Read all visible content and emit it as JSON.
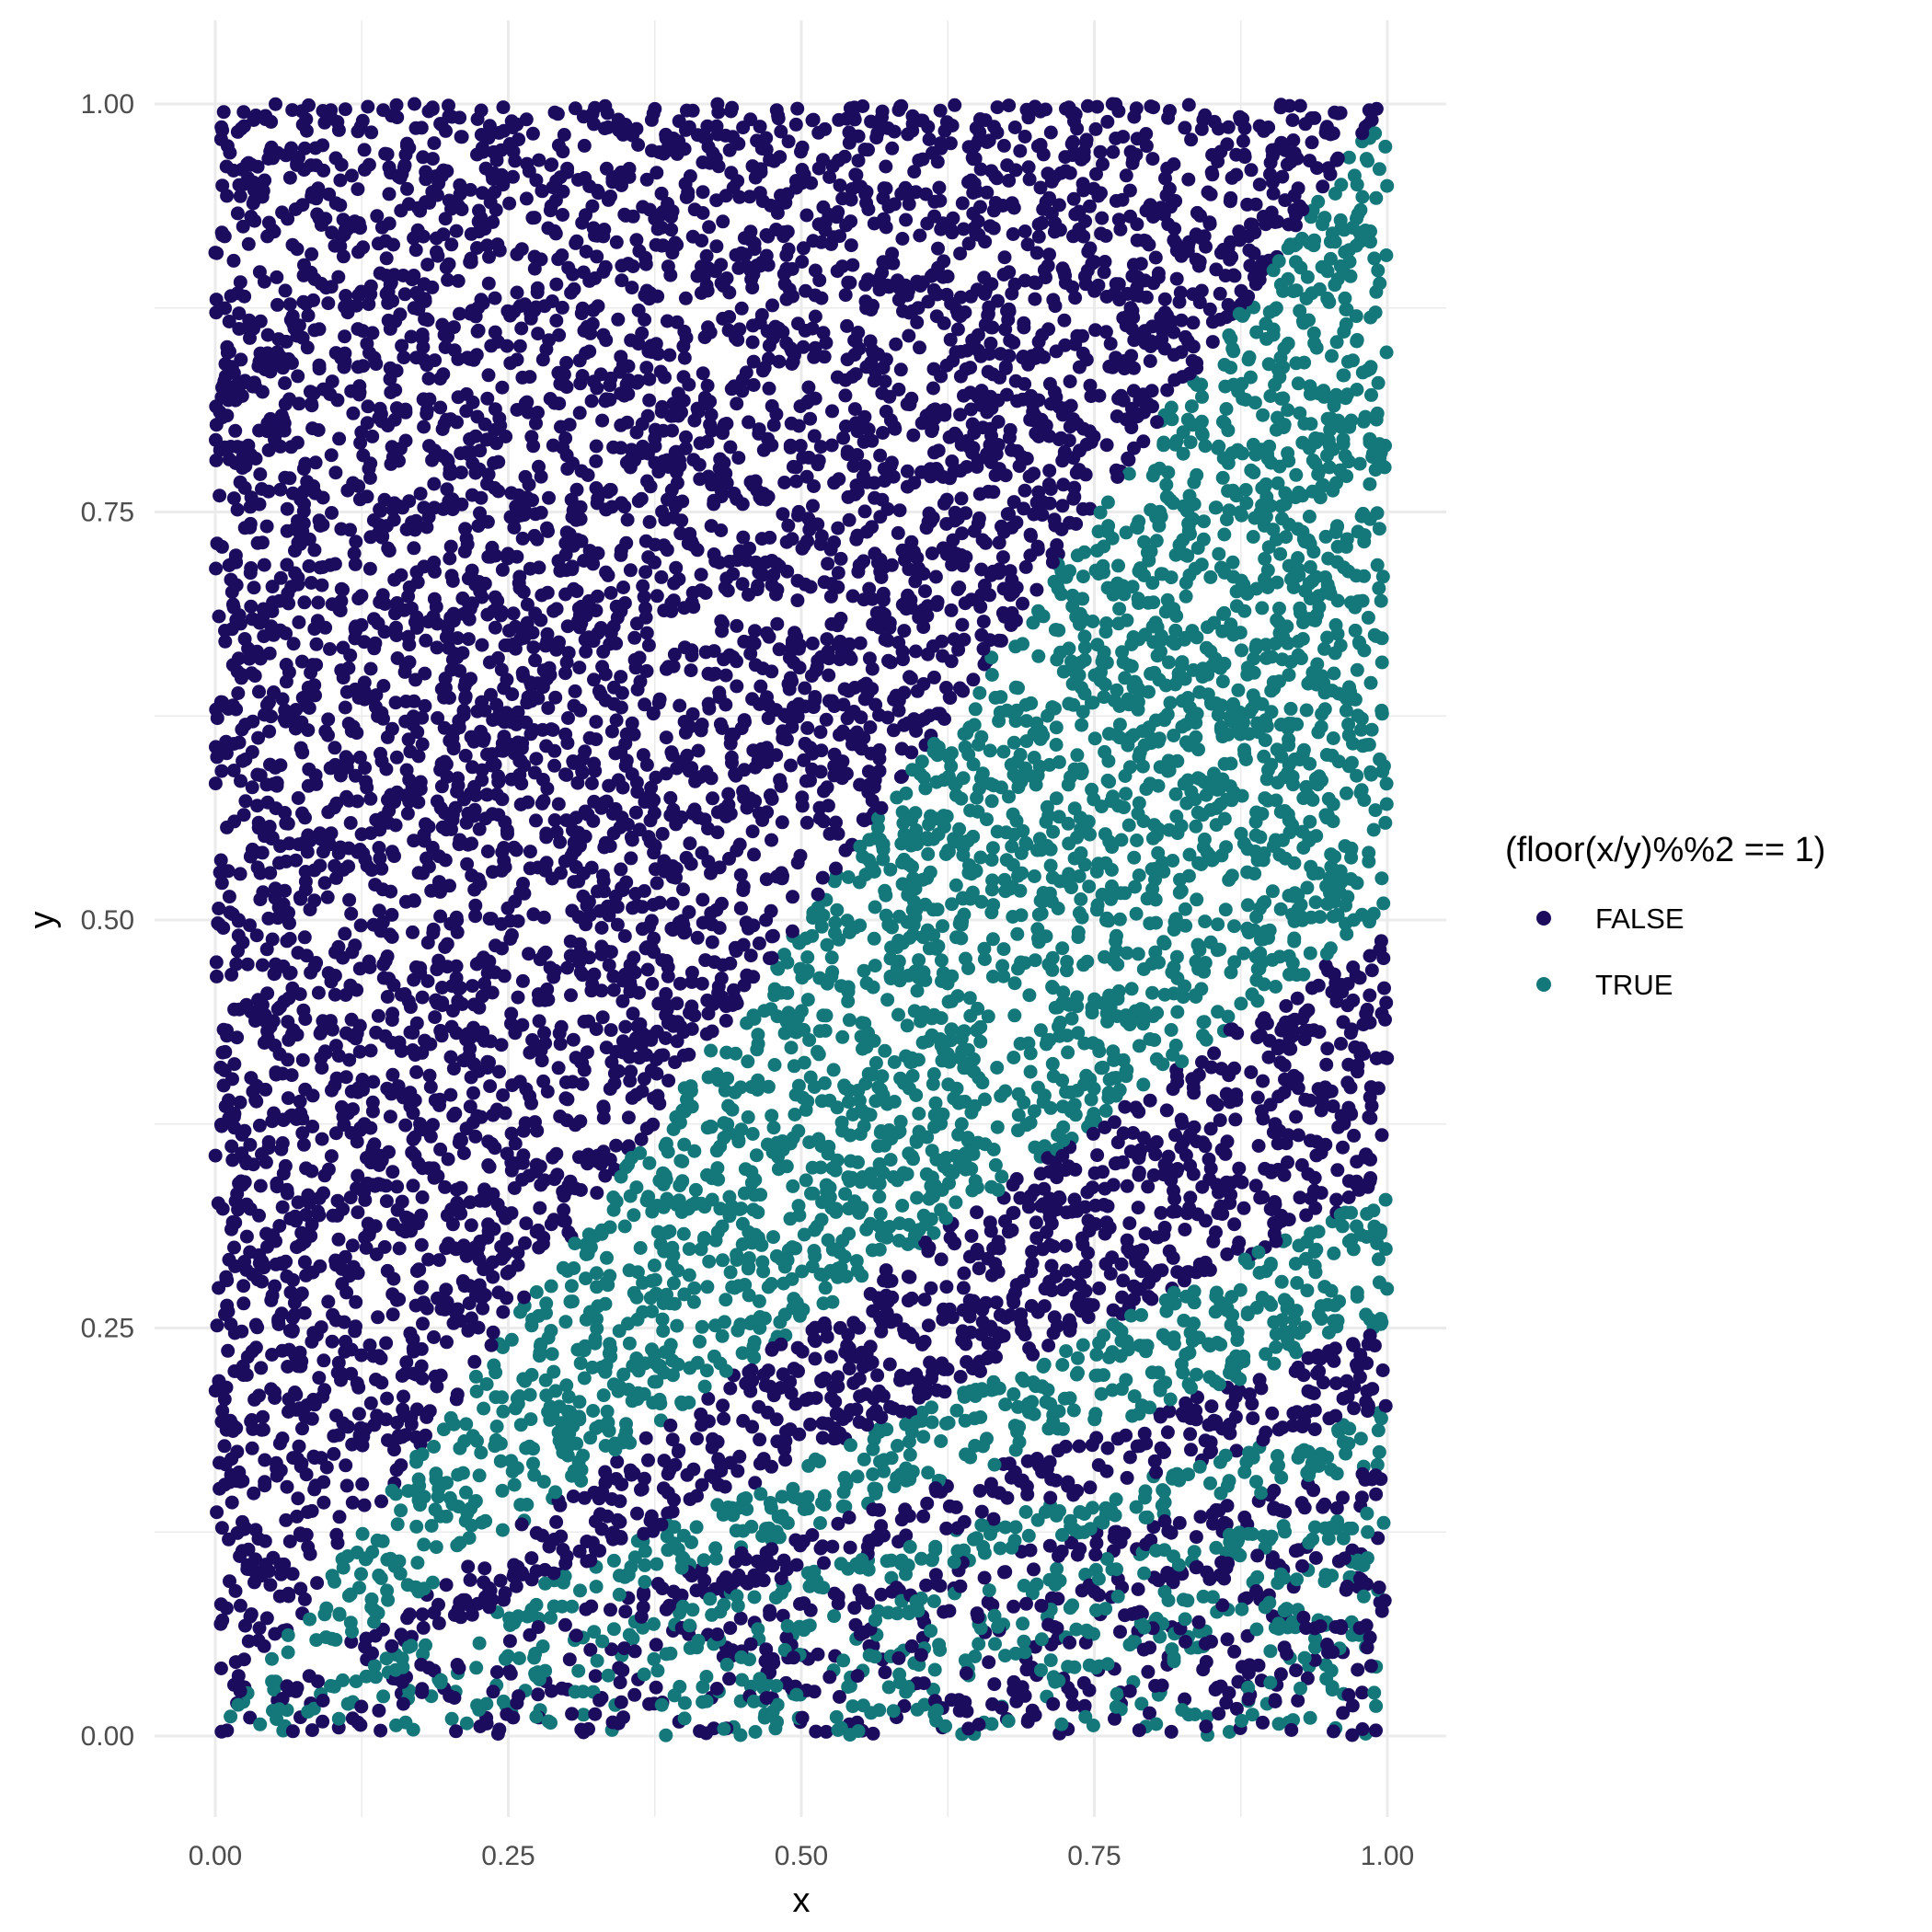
{
  "chart_data": {
    "type": "scatter",
    "title": "",
    "xlabel": "x",
    "ylabel": "y",
    "xlim": [
      0,
      1
    ],
    "ylim": [
      0,
      1
    ],
    "x_ticks": [
      "0.00",
      "0.25",
      "0.50",
      "0.75",
      "1.00"
    ],
    "y_ticks": [
      "0.00",
      "0.25",
      "0.50",
      "0.75",
      "1.00"
    ],
    "grid": true,
    "legend": {
      "title": "(floor(x/y)%%2 == 1)",
      "placement": "right",
      "entries": [
        {
          "label": "FALSE",
          "color": "#1b0c5e"
        },
        {
          "label": "TRUE",
          "color": "#14777a"
        }
      ]
    },
    "points": {
      "count": 10000,
      "distribution": "uniform random x in [0,1], y in [0,1]",
      "color_rule": "floor(x/y) % 2 == 1 → TRUE, otherwise FALSE"
    }
  }
}
